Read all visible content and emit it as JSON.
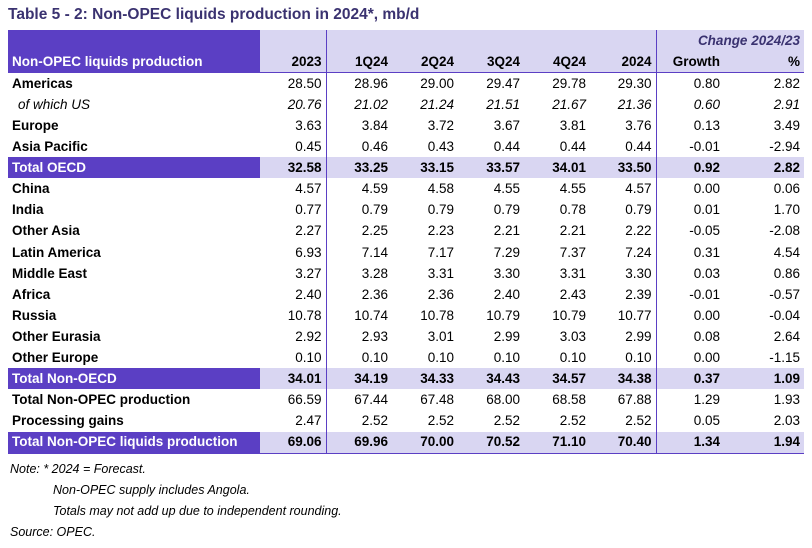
{
  "title": "Table 5 - 2: Non-OPEC liquids production in 2024*, mb/d",
  "header": {
    "change_label": "Change 2024/23",
    "label_col": "Non-OPEC liquids production",
    "columns": [
      "2023",
      "1Q24",
      "2Q24",
      "3Q24",
      "4Q24",
      "2024",
      "Growth",
      "%"
    ]
  },
  "rows": [
    {
      "label": "Americas",
      "values": [
        "28.50",
        "28.96",
        "29.00",
        "29.47",
        "29.78",
        "29.30",
        "0.80",
        "2.82"
      ],
      "type": "data"
    },
    {
      "label": "of which US",
      "values": [
        "20.76",
        "21.02",
        "21.24",
        "21.51",
        "21.67",
        "21.36",
        "0.60",
        "2.91"
      ],
      "type": "sub"
    },
    {
      "label": "Europe",
      "values": [
        "3.63",
        "3.84",
        "3.72",
        "3.67",
        "3.81",
        "3.76",
        "0.13",
        "3.49"
      ],
      "type": "data"
    },
    {
      "label": "Asia Pacific",
      "values": [
        "0.45",
        "0.46",
        "0.43",
        "0.44",
        "0.44",
        "0.44",
        "-0.01",
        "-2.94"
      ],
      "type": "data"
    },
    {
      "label": "Total OECD",
      "values": [
        "32.58",
        "33.25",
        "33.15",
        "33.57",
        "34.01",
        "33.50",
        "0.92",
        "2.82"
      ],
      "type": "total"
    },
    {
      "label": "China",
      "values": [
        "4.57",
        "4.59",
        "4.58",
        "4.55",
        "4.55",
        "4.57",
        "0.00",
        "0.06"
      ],
      "type": "data"
    },
    {
      "label": "India",
      "values": [
        "0.77",
        "0.79",
        "0.79",
        "0.79",
        "0.78",
        "0.79",
        "0.01",
        "1.70"
      ],
      "type": "data"
    },
    {
      "label": "Other Asia",
      "values": [
        "2.27",
        "2.25",
        "2.23",
        "2.21",
        "2.21",
        "2.22",
        "-0.05",
        "-2.08"
      ],
      "type": "data"
    },
    {
      "label": "Latin America",
      "values": [
        "6.93",
        "7.14",
        "7.17",
        "7.29",
        "7.37",
        "7.24",
        "0.31",
        "4.54"
      ],
      "type": "data"
    },
    {
      "label": "Middle East",
      "values": [
        "3.27",
        "3.28",
        "3.31",
        "3.30",
        "3.31",
        "3.30",
        "0.03",
        "0.86"
      ],
      "type": "data"
    },
    {
      "label": "Africa",
      "values": [
        "2.40",
        "2.36",
        "2.36",
        "2.40",
        "2.43",
        "2.39",
        "-0.01",
        "-0.57"
      ],
      "type": "data"
    },
    {
      "label": "Russia",
      "values": [
        "10.78",
        "10.74",
        "10.78",
        "10.79",
        "10.79",
        "10.77",
        "0.00",
        "-0.04"
      ],
      "type": "data"
    },
    {
      "label": "Other Eurasia",
      "values": [
        "2.92",
        "2.93",
        "3.01",
        "2.99",
        "3.03",
        "2.99",
        "0.08",
        "2.64"
      ],
      "type": "data"
    },
    {
      "label": "Other Europe",
      "values": [
        "0.10",
        "0.10",
        "0.10",
        "0.10",
        "0.10",
        "0.10",
        "0.00",
        "-1.15"
      ],
      "type": "data"
    },
    {
      "label": "Total Non-OECD",
      "values": [
        "34.01",
        "34.19",
        "34.33",
        "34.43",
        "34.57",
        "34.38",
        "0.37",
        "1.09"
      ],
      "type": "total"
    },
    {
      "label": "Total Non-OPEC production",
      "values": [
        "66.59",
        "67.44",
        "67.48",
        "68.00",
        "68.58",
        "67.88",
        "1.29",
        "1.93"
      ],
      "type": "data"
    },
    {
      "label": "Processing gains",
      "values": [
        "2.47",
        "2.52",
        "2.52",
        "2.52",
        "2.52",
        "2.52",
        "0.05",
        "2.03"
      ],
      "type": "data"
    },
    {
      "label": "Total Non-OPEC liquids production",
      "values": [
        "69.06",
        "69.96",
        "70.00",
        "70.52",
        "71.10",
        "70.40",
        "1.34",
        "1.94"
      ],
      "type": "total"
    }
  ],
  "notes": [
    "Note: * 2024 = Forecast.",
    "Non-OPEC supply includes Angola.",
    "Totals may not add up due to independent rounding.",
    "Source: OPEC."
  ],
  "colors": {
    "header_fill": "#5b3fc4",
    "header_light": "#d9d6f2",
    "title_color": "#3a3270"
  }
}
